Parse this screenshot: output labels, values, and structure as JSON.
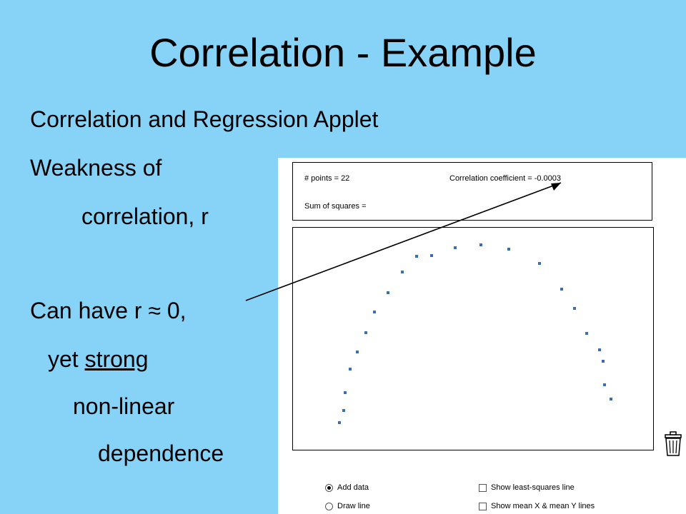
{
  "slide": {
    "title": "Correlation - Example",
    "lines": [
      "Correlation and Regression Applet",
      "Weakness of",
      "correlation, r",
      "Can have  r ≈ 0,",
      "yet ",
      "strong",
      "non-linear",
      "dependence"
    ]
  },
  "applet": {
    "points_label": "# points = 22",
    "correlation_label": "Correlation coefficient = -0.0003",
    "sum_squares_label": "Sum of squares =",
    "controls": {
      "add_data": "Add data",
      "draw_line": "Draw line",
      "show_least_squares": "Show least-squares line",
      "show_mean_lines": "Show mean X & mean Y lines"
    },
    "selected_mode": "Add data",
    "icons": {
      "trash": "trash-icon"
    },
    "colors": {
      "point": "#3a6fb5",
      "background": "#87d3f8"
    }
  }
}
